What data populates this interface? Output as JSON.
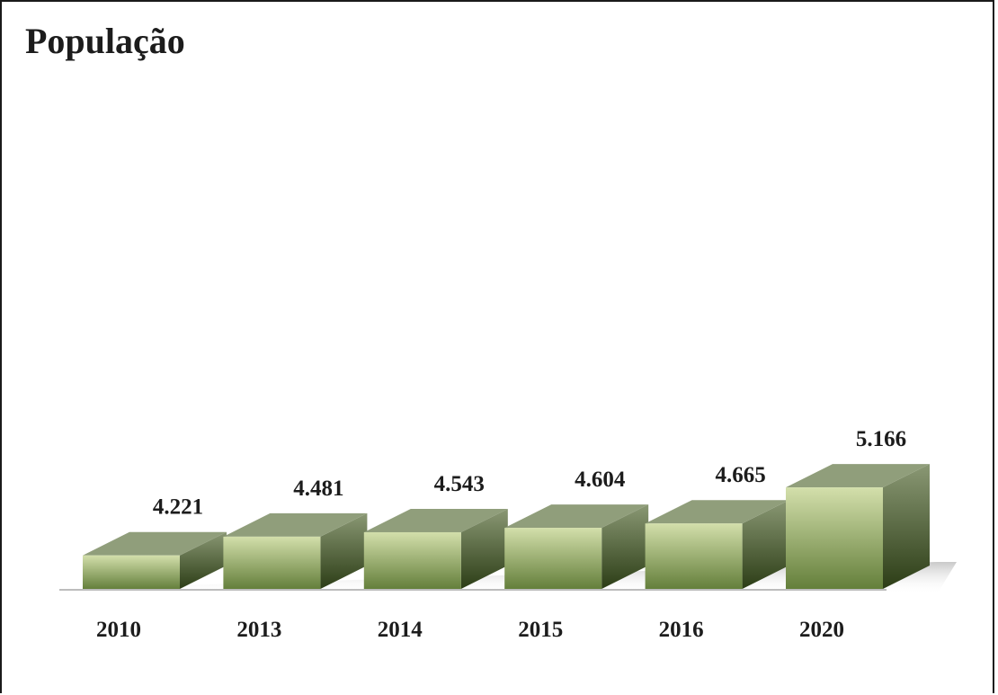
{
  "chart_data": {
    "type": "bar",
    "title": "População",
    "xlabel": "",
    "ylabel": "",
    "categories": [
      "2010",
      "2013",
      "2014",
      "2015",
      "2016",
      "2020"
    ],
    "values": [
      4221,
      4481,
      4543,
      4604,
      4665,
      5166
    ],
    "value_labels": [
      "4.221",
      "4.481",
      "4.543",
      "4.604",
      "4.665",
      "5.166"
    ],
    "ylim": [
      0,
      5600
    ],
    "grid": false,
    "legend": "none",
    "style": "3d-column",
    "colors": {
      "front_top": "#d3dfab",
      "front_bottom": "#647f3b",
      "side_top": "#8a9874",
      "side_bottom": "#2c3d16",
      "top_face": "#909e7b",
      "text": "#1c1c1c"
    }
  }
}
